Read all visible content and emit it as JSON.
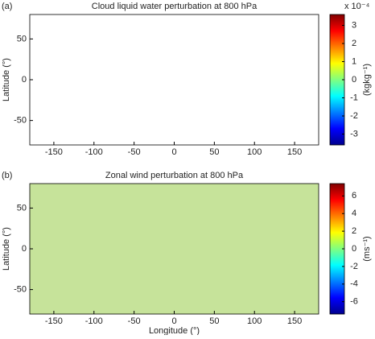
{
  "chart_data": [
    {
      "type": "heatmap",
      "panel_label": "(a)",
      "title": "Cloud liquid water perturbation at 800 hPa",
      "ylabel": "Latitude (°)",
      "xlim": [
        -180,
        180
      ],
      "ylim": [
        -80,
        80
      ],
      "xticks": [
        -150,
        -100,
        -50,
        0,
        50,
        100,
        150
      ],
      "yticks": [
        -50,
        0,
        50
      ],
      "background": "#ffffff",
      "colormap": "jet",
      "colorbar": {
        "label": "(kgkg⁻¹)",
        "multiplier": "x 10⁻⁴",
        "lim": [
          -3.6,
          3.6
        ],
        "ticks": [
          -3,
          -2,
          -1,
          0,
          1,
          2,
          3
        ]
      }
    },
    {
      "type": "heatmap",
      "panel_label": "(b)",
      "title": "Zonal wind perturbation at 800 hPa",
      "ylabel": "Latitude (°)",
      "xlabel": "Longitude (°)",
      "xlim": [
        -180,
        180
      ],
      "ylim": [
        -80,
        80
      ],
      "xticks": [
        -150,
        -100,
        -50,
        0,
        50,
        100,
        150
      ],
      "yticks": [
        -50,
        0,
        50
      ],
      "background": "#c6e39a",
      "colormap": "jet",
      "colorbar": {
        "label": "(ms⁻¹)",
        "lim": [
          -7.4,
          7.4
        ],
        "ticks": [
          -6,
          -4,
          -2,
          0,
          2,
          4,
          6
        ]
      }
    }
  ]
}
